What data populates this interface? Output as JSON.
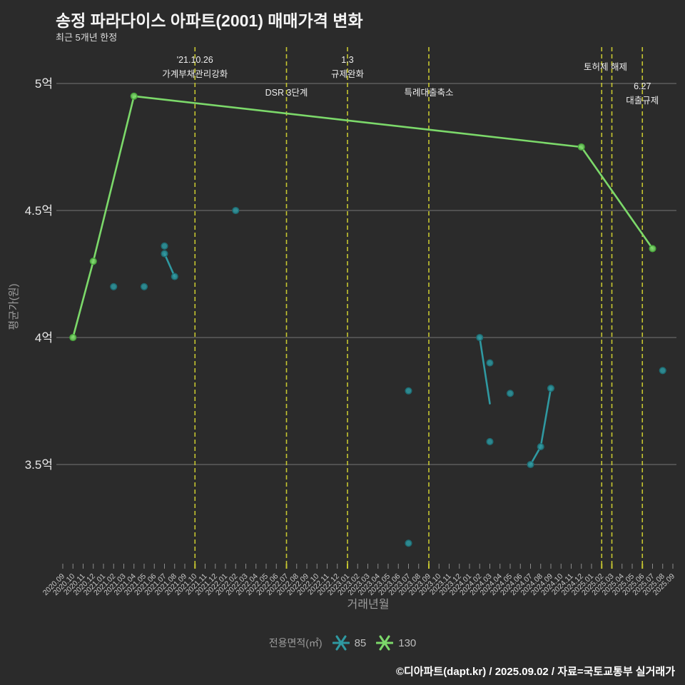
{
  "page": {
    "title": "송정 파라다이스 아파트(2001) 매매가격 변화",
    "subtitle": "최근 5개년 한정",
    "footer": "©디아파트(dapt.kr) / 2025.09.02 / 자료=국토교통부 실거래가"
  },
  "legend": {
    "title": "전용면적(㎡)",
    "items": [
      {
        "label": "85",
        "color": "#2f99a1"
      },
      {
        "label": "130",
        "color": "#7cd96a"
      }
    ]
  },
  "chart_data": {
    "type": "line",
    "title": "송정 파라다이스 아파트(2001) 매매가격 변화",
    "subtitle": "최근 5개년 한정",
    "xlabel": "거래년월",
    "ylabel": "평균가(원)",
    "grid": true,
    "legend_position": "bottom",
    "background": "#2b2b2b",
    "event_line_color": "#c6c630",
    "ylim_uk": [
      3.1,
      5.07
    ],
    "y_ticks": [
      {
        "value": 5.0,
        "label": "5억"
      },
      {
        "value": 4.5,
        "label": "4.5억"
      },
      {
        "value": 4.0,
        "label": "4억"
      },
      {
        "value": 3.5,
        "label": "3.5억"
      }
    ],
    "x_categories": [
      "2020.09",
      "2020.10",
      "2020.11",
      "2020.12",
      "2021.01",
      "2021.02",
      "2021.03",
      "2021.04",
      "2021.05",
      "2021.06",
      "2021.07",
      "2021.08",
      "2021.09",
      "2021.10",
      "2021.11",
      "2021.12",
      "2022.01",
      "2022.02",
      "2022.03",
      "2022.04",
      "2022.05",
      "2022.06",
      "2022.07",
      "2022.08",
      "2022.09",
      "2022.10",
      "2022.11",
      "2022.12",
      "2023.01",
      "2023.02",
      "2023.03",
      "2023.04",
      "2023.05",
      "2023.06",
      "2023.07",
      "2023.08",
      "2023.09",
      "2023.10",
      "2023.11",
      "2023.12",
      "2024.01",
      "2024.02",
      "2024.03",
      "2024.04",
      "2024.05",
      "2024.06",
      "2024.07",
      "2024.08",
      "2024.09",
      "2024.10",
      "2024.11",
      "2024.12",
      "2025.01",
      "2025.02",
      "2025.03",
      "2025.04",
      "2025.05",
      "2025.06",
      "2025.07",
      "2025.08",
      "2025.09"
    ],
    "event_lines": [
      {
        "month": "2021.10",
        "label_lines": [
          "'21.10.26",
          "가계부채관리강화"
        ],
        "label_y": [
          88,
          108
        ],
        "label_dx": 0
      },
      {
        "month": "2022.07",
        "label_lines": [
          "DSR 3단계"
        ],
        "label_y": [
          134
        ],
        "label_dx": 0
      },
      {
        "month": "2023.01",
        "label_lines": [
          "1.3",
          "규제완화"
        ],
        "label_y": [
          88,
          108
        ],
        "label_dx": 0
      },
      {
        "month": "2023.09",
        "label_lines": [
          "특례대출축소"
        ],
        "label_y": [
          134
        ],
        "label_dx": 0
      },
      {
        "month": "2025.02",
        "label_lines": [],
        "label_y": [],
        "label_dx": 0
      },
      {
        "month": "2025.03",
        "label_lines": [
          "토허제 해제"
        ],
        "label_y": [
          98
        ],
        "label_dx": -9
      },
      {
        "month": "2025.06",
        "label_lines": [
          "6.27",
          "대출규제"
        ],
        "label_y": [
          125,
          145
        ],
        "label_dx": 0
      }
    ],
    "series": [
      {
        "name": "85",
        "unit": "㎡",
        "color": "#2f99a1",
        "marker_stroke": "#1d6d74",
        "segments": [
          [
            [
              "2021.07",
              4.33
            ],
            [
              "2021.08",
              4.24
            ]
          ],
          [
            [
              "2024.02",
              4.0
            ],
            [
              "2024.03",
              3.74
            ]
          ],
          [
            [
              "2024.07",
              3.5
            ],
            [
              "2024.08",
              3.57
            ],
            [
              "2024.09",
              3.8
            ]
          ]
        ],
        "markers": [
          [
            "2021.02",
            4.2
          ],
          [
            "2021.05",
            4.2
          ],
          [
            "2021.07",
            4.36
          ],
          [
            "2021.07",
            4.33
          ],
          [
            "2021.08",
            4.24
          ],
          [
            "2022.02",
            4.5
          ],
          [
            "2023.07",
            3.79
          ],
          [
            "2023.07",
            3.19
          ],
          [
            "2024.02",
            4.0
          ],
          [
            "2024.03",
            3.9
          ],
          [
            "2024.03",
            3.59
          ],
          [
            "2024.05",
            3.78
          ],
          [
            "2024.07",
            3.5
          ],
          [
            "2024.08",
            3.57
          ],
          [
            "2024.09",
            3.8
          ],
          [
            "2025.08",
            3.87
          ]
        ]
      },
      {
        "name": "130",
        "unit": "㎡",
        "color": "#7cd96a",
        "marker_stroke": "#49a83c",
        "segments": [
          [
            [
              "2020.10",
              4.0
            ],
            [
              "2020.12",
              4.3
            ],
            [
              "2021.04",
              4.95
            ],
            [
              "2024.12",
              4.75
            ],
            [
              "2025.07",
              4.35
            ]
          ]
        ],
        "markers": [
          [
            "2020.10",
            4.0
          ],
          [
            "2020.12",
            4.3
          ],
          [
            "2021.04",
            4.95
          ],
          [
            "2024.12",
            4.75
          ],
          [
            "2025.07",
            4.35
          ]
        ]
      }
    ]
  }
}
